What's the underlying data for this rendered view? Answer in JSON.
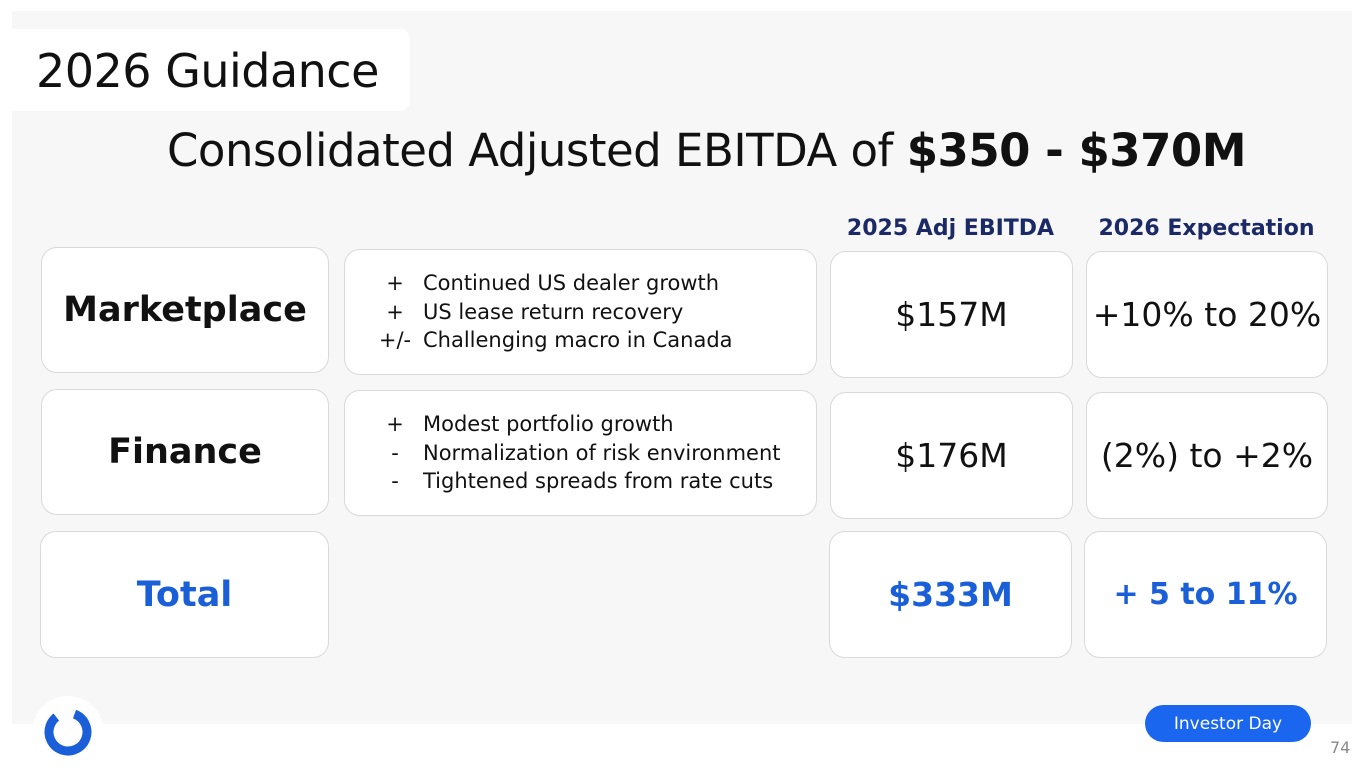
{
  "slide": {
    "title": "2026 Guidance",
    "headline_prefix": "Consolidated Adjusted EBITDA of ",
    "headline_range": "$350 - $370M"
  },
  "columns": {
    "adj_ebitda_header": "2025 Adj EBITDA",
    "expectation_header": "2026 Expectation"
  },
  "segments": [
    {
      "name": "Marketplace",
      "drivers": [
        {
          "sign": "+",
          "text": "Continued US dealer growth"
        },
        {
          "sign": "+",
          "text": "US lease return recovery"
        },
        {
          "sign": "+/-",
          "text": "Challenging macro in Canada"
        }
      ],
      "adj_ebitda_2025": "$157M",
      "expectation_2026": "+10% to 20%"
    },
    {
      "name": "Finance",
      "drivers": [
        {
          "sign": "+",
          "text": "Modest portfolio growth"
        },
        {
          "sign": "-",
          "text": "Normalization of risk environment"
        },
        {
          "sign": "-",
          "text": "Tightened spreads from rate cuts"
        }
      ],
      "adj_ebitda_2025": "$176M",
      "expectation_2026": "(2%) to +2%"
    },
    {
      "name": "Total",
      "adj_ebitda_2025": "$333M",
      "expectation_2026": "+ 5 to 11%"
    }
  ],
  "footer": {
    "badge": "Investor Day",
    "page_number": "74",
    "logo_icon": "ring-logo-icon"
  },
  "colors": {
    "accent_blue": "#1a5fd8",
    "header_navy": "#1b2a66",
    "badge_blue": "#1a66ee",
    "panel_gray": "#f7f7f7"
  }
}
